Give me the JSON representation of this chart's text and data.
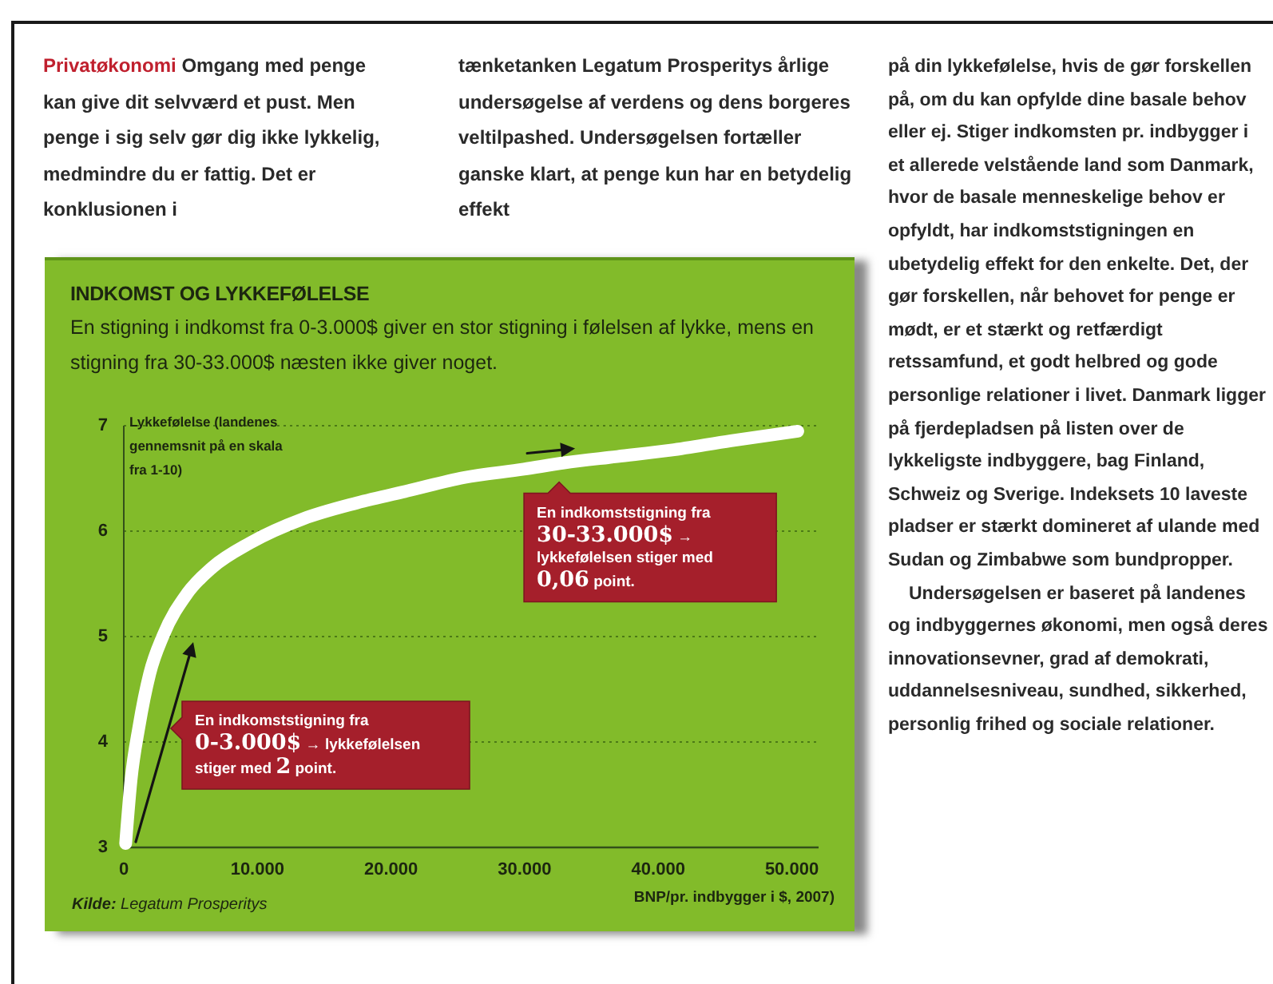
{
  "chart_data": {
    "type": "line",
    "title": "INDKOMST OG LYKKEFØLELSE",
    "subtitle": "En stigning i indkomst fra 0-3.000$ giver en stor stigning i følelsen af lykke, mens en stigning fra 30-33.000$ næsten ikke giver noget.",
    "xlabel": "BNP/pr. indbygger i $, 2007)",
    "ylabel": "Lykkefølelse (landenes gennemsnit på en skala fra 1-10)",
    "x": [
      200,
      600,
      1200,
      2000,
      3000,
      4800,
      6700,
      9500,
      13500,
      17500,
      21500,
      25500,
      30000,
      33000,
      37000,
      41000,
      45500,
      50500
    ],
    "series": [
      {
        "color": "#ffffff",
        "values": [
          3.03,
          3.63,
          4.14,
          4.64,
          5.0,
          5.4,
          5.65,
          5.88,
          6.11,
          6.26,
          6.38,
          6.5,
          6.58,
          6.64,
          6.7,
          6.76,
          6.85,
          6.94
        ]
      }
    ],
    "xlim": [
      0,
      52000
    ],
    "ylim": [
      3,
      7
    ],
    "xticks": [
      0,
      {
        "value": 10000,
        "label": "10.000"
      },
      {
        "value": 20000,
        "label": "20.000"
      },
      {
        "value": 30000,
        "label": "30.000"
      },
      {
        "value": 40000,
        "label": "40.000"
      },
      {
        "value": 50000,
        "label": "50.000"
      }
    ],
    "yticks": [
      3,
      4,
      5,
      6,
      7
    ],
    "grid": "y",
    "annotations": [
      "Privatøkonomi",
      "Omgang med penge kan give dit selvværd et pust. Men penge i sig selv gør dig ikke lykkelig, medmindre du er fattig. Det er konklusionen i",
      "tænketanken Legatum Prosperitys årlige undersøgelse af verdens og dens borgeres veltilpashed. Undersøgelsen fortæller ganske klart, at penge kun har en betydelig effekt",
      "på din lykkefølelse, hvis de gør forskellen på, om du kan opfylde dine basale behov eller ej. Stiger indkomsten pr. indbygger i et allerede velstående land som Danmark, hvor de basale menneskelige behov er opfyldt, har indkomststigningen en ubetydelig effekt for den enkelte. Det, der gør forskellen, når behovet for penge er mødt, er et stærkt og retfærdigt retssamfund, et godt helbred og gode personlige relationer i livet. Danmark ligger på fjerdepladsen på listen over de lykkeligste indbyggere, bag Finland, Schweiz og Sverige. Indeksets 10 laveste pladser er stærkt domineret af ulande med Sudan og Zimbabwe som bundpropper.",
      "Undersøgelsen er baseret på landenes og indbyggernes økonomi, men også deres innovationsevner, grad af demokrati, uddannelsesniveau, sundhed, sikkerhed, personlig frihed og sociale relationer.",
      "En indkomststigning fra 0-3.000$ → lykkefølelsen stiger med 2 point.",
      {
        "text": "En indkomststigning fra 30-33.000$ → lykkefølelsen stiger med 0,06 point.",
        "x": 33000,
        "y": 6.64
      },
      "Kilde: Legatum Prosperitys"
    ]
  }
}
